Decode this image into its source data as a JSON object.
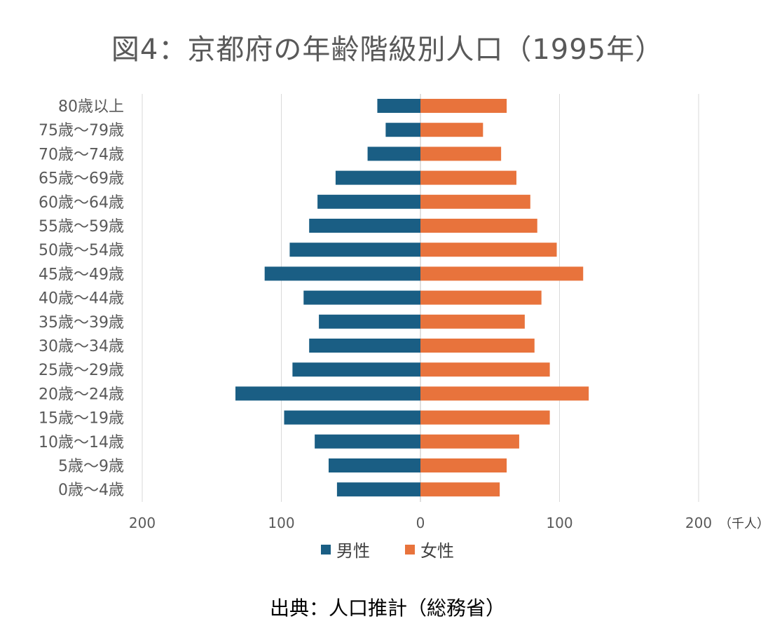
{
  "title": "図4：京都府の年齢階級別人口（1995年）",
  "source": "出典：人口推計（総務省）",
  "colors": {
    "male": "#1a5e84",
    "female": "#e8733c",
    "grid": "#d9d9d9",
    "axis": "#bfbfbf"
  },
  "legend": [
    {
      "key": "male",
      "label": "男性"
    },
    {
      "key": "female",
      "label": "女性"
    }
  ],
  "chart_data": {
    "type": "bar",
    "orientation": "horizontal",
    "layout": "population-pyramid",
    "categories": [
      "80歳以上",
      "75歳〜79歳",
      "70歳〜74歳",
      "65歳〜69歳",
      "60歳〜64歳",
      "55歳〜59歳",
      "50歳〜54歳",
      "45歳〜49歳",
      "40歳〜44歳",
      "35歳〜39歳",
      "30歳〜34歳",
      "25歳〜29歳",
      "20歳〜24歳",
      "15歳〜19歳",
      "10歳〜14歳",
      "5歳〜9歳",
      "0歳〜4歳"
    ],
    "series": [
      {
        "name": "男性",
        "values": [
          31,
          25,
          38,
          61,
          74,
          80,
          94,
          112,
          84,
          73,
          80,
          92,
          133,
          98,
          76,
          66,
          60
        ]
      },
      {
        "name": "女性",
        "values": [
          62,
          45,
          58,
          69,
          79,
          84,
          98,
          117,
          87,
          75,
          82,
          93,
          121,
          93,
          71,
          62,
          57
        ]
      }
    ],
    "xlim": [
      -200,
      200
    ],
    "x_tick_labels": [
      "200",
      "100",
      "0",
      "100",
      "200"
    ],
    "x_unit_label": "（千人）",
    "grid": "vertical",
    "legend_position": "bottom"
  }
}
